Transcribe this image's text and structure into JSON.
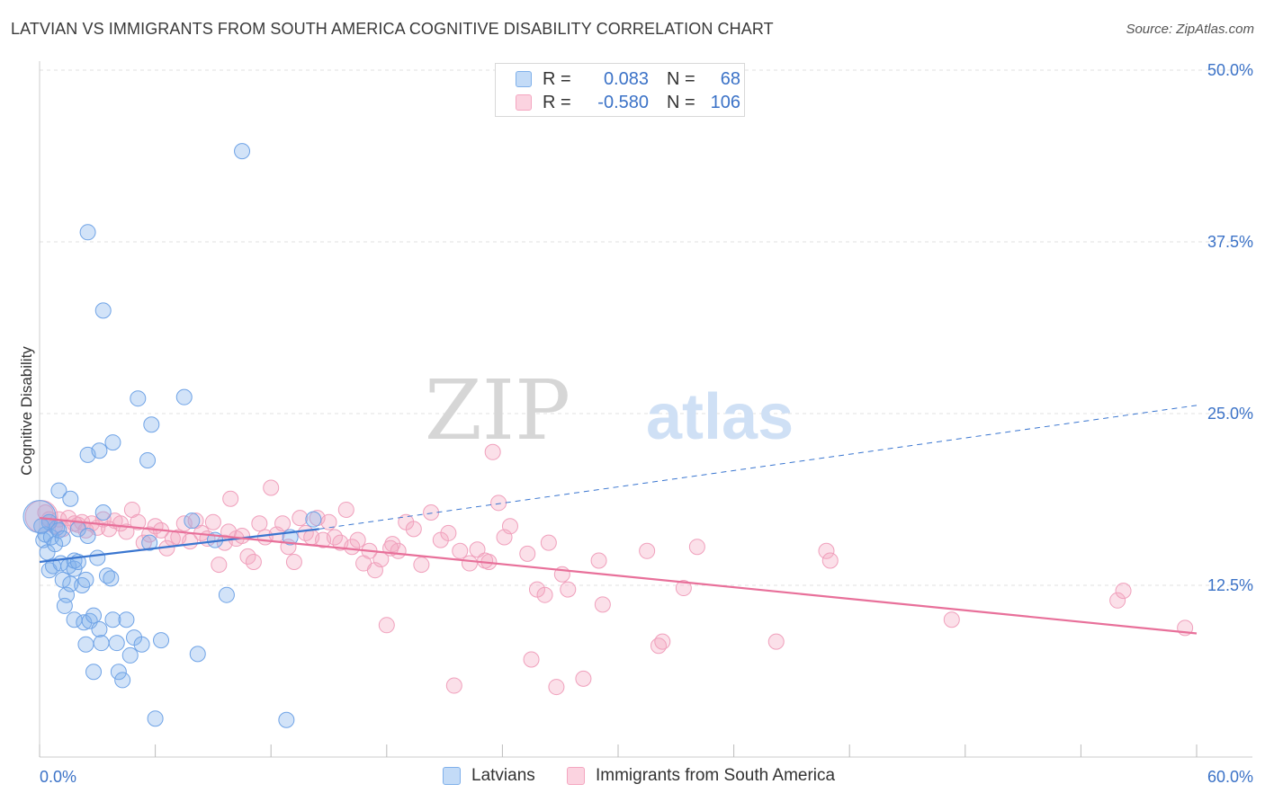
{
  "header": {
    "title": "LATVIAN VS IMMIGRANTS FROM SOUTH AMERICA COGNITIVE DISABILITY CORRELATION CHART",
    "source": "Source: ZipAtlas.com"
  },
  "watermark": {
    "zip": "ZIP",
    "atlas": "atlas"
  },
  "legend": {
    "rows": [
      {
        "r_label": "R =",
        "r_value": "0.083",
        "n_label": "N =",
        "n_value": "68",
        "color": "#7fb0ea"
      },
      {
        "r_label": "R =",
        "r_value": "-0.580",
        "n_label": "N =",
        "n_value": "106",
        "color": "#f4a6c0"
      }
    ]
  },
  "bottom_legend": {
    "items": [
      {
        "label": "Latvians",
        "color": "#7fb0ea"
      },
      {
        "label": "Immigrants from South America",
        "color": "#f4a6c0"
      }
    ]
  },
  "chart_data": {
    "type": "scatter",
    "title": "LATVIAN VS IMMIGRANTS FROM SOUTH AMERICA COGNITIVE DISABILITY CORRELATION CHART",
    "xlabel": "",
    "ylabel": "Cognitive Disability",
    "xlim": [
      0,
      60
    ],
    "ylim": [
      0,
      50
    ],
    "x_tick_labels": [
      "0.0%",
      "60.0%"
    ],
    "y_tick_labels": [
      "12.5%",
      "25.0%",
      "37.5%",
      "50.0%"
    ],
    "y_ticks": [
      12.5,
      25.0,
      37.5,
      50.0
    ],
    "grid": true,
    "colors": {
      "blue": "#6fa3e6",
      "pink": "#f0a0bc",
      "blue_line": "#3a76d0",
      "pink_line": "#e8709a",
      "axis_text": "#3b72c7"
    },
    "series": [
      {
        "name": "Latvians",
        "color": "#7fb0ea",
        "trend": {
          "x": [
            0,
            14.5
          ],
          "y": [
            14.2,
            16.6
          ],
          "dashed_to": [
            60,
            25.6
          ]
        },
        "points": [
          [
            0.1,
            16.8
          ],
          [
            0.2,
            15.8
          ],
          [
            0.3,
            16.2
          ],
          [
            0.4,
            14.9
          ],
          [
            0.5,
            17.1
          ],
          [
            0.5,
            13.6
          ],
          [
            0.6,
            16.0
          ],
          [
            0.7,
            13.9
          ],
          [
            0.8,
            15.5
          ],
          [
            0.9,
            16.7
          ],
          [
            1.0,
            16.5
          ],
          [
            1.0,
            19.4
          ],
          [
            1.1,
            14.1
          ],
          [
            1.2,
            15.9
          ],
          [
            1.2,
            12.9
          ],
          [
            1.3,
            11.0
          ],
          [
            1.4,
            11.8
          ],
          [
            1.5,
            13.9
          ],
          [
            1.6,
            12.6
          ],
          [
            1.6,
            18.8
          ],
          [
            1.8,
            13.7
          ],
          [
            1.8,
            10.0
          ],
          [
            1.8,
            14.3
          ],
          [
            2.0,
            14.2
          ],
          [
            2.0,
            16.6
          ],
          [
            2.2,
            12.5
          ],
          [
            2.3,
            9.8
          ],
          [
            2.4,
            12.9
          ],
          [
            2.4,
            8.2
          ],
          [
            2.5,
            16.1
          ],
          [
            2.5,
            38.2
          ],
          [
            2.5,
            22.0
          ],
          [
            2.6,
            9.9
          ],
          [
            2.8,
            10.3
          ],
          [
            2.8,
            6.2
          ],
          [
            3.0,
            14.5
          ],
          [
            3.1,
            9.3
          ],
          [
            3.1,
            22.3
          ],
          [
            3.2,
            8.3
          ],
          [
            3.3,
            17.8
          ],
          [
            3.3,
            32.5
          ],
          [
            3.5,
            13.2
          ],
          [
            3.7,
            13.0
          ],
          [
            3.8,
            10.0
          ],
          [
            3.8,
            22.9
          ],
          [
            4.0,
            8.3
          ],
          [
            4.1,
            6.2
          ],
          [
            4.3,
            5.6
          ],
          [
            4.5,
            10.0
          ],
          [
            4.7,
            7.4
          ],
          [
            4.9,
            8.7
          ],
          [
            5.1,
            26.1
          ],
          [
            5.3,
            8.2
          ],
          [
            5.6,
            21.6
          ],
          [
            5.7,
            15.6
          ],
          [
            5.8,
            24.2
          ],
          [
            6.0,
            2.8
          ],
          [
            6.3,
            8.5
          ],
          [
            7.5,
            26.2
          ],
          [
            7.9,
            17.2
          ],
          [
            8.2,
            7.5
          ],
          [
            9.1,
            15.8
          ],
          [
            9.7,
            11.8
          ],
          [
            10.5,
            44.1
          ],
          [
            12.8,
            2.7
          ],
          [
            13.0,
            16.0
          ],
          [
            14.2,
            17.3
          ],
          [
            0.0,
            17.5
          ]
        ]
      },
      {
        "name": "Immigrants from South America",
        "color": "#f4a6c0",
        "trend": {
          "x": [
            0,
            60
          ],
          "y": [
            17.4,
            9.0
          ]
        },
        "points": [
          [
            0.1,
            17.5
          ],
          [
            0.3,
            17.8
          ],
          [
            0.5,
            17.3
          ],
          [
            0.8,
            16.8
          ],
          [
            1.0,
            17.3
          ],
          [
            1.2,
            16.6
          ],
          [
            1.5,
            17.4
          ],
          [
            1.8,
            17.0
          ],
          [
            2.0,
            16.9
          ],
          [
            2.2,
            17.1
          ],
          [
            2.4,
            16.5
          ],
          [
            2.7,
            17.0
          ],
          [
            3.0,
            16.7
          ],
          [
            3.3,
            17.3
          ],
          [
            3.6,
            16.6
          ],
          [
            3.9,
            17.2
          ],
          [
            4.2,
            17.0
          ],
          [
            4.5,
            16.4
          ],
          [
            4.8,
            18.0
          ],
          [
            5.1,
            17.1
          ],
          [
            5.4,
            15.6
          ],
          [
            5.7,
            16.2
          ],
          [
            6.0,
            16.8
          ],
          [
            6.3,
            16.5
          ],
          [
            6.6,
            15.2
          ],
          [
            6.9,
            15.9
          ],
          [
            7.2,
            16.0
          ],
          [
            7.5,
            17.0
          ],
          [
            7.8,
            15.7
          ],
          [
            8.1,
            17.2
          ],
          [
            8.4,
            16.3
          ],
          [
            8.7,
            15.9
          ],
          [
            9.0,
            17.1
          ],
          [
            9.3,
            14.0
          ],
          [
            9.6,
            15.6
          ],
          [
            9.9,
            18.8
          ],
          [
            10.2,
            15.9
          ],
          [
            10.5,
            16.1
          ],
          [
            10.8,
            14.6
          ],
          [
            11.1,
            14.2
          ],
          [
            11.4,
            17.0
          ],
          [
            11.7,
            16.0
          ],
          [
            12.0,
            19.6
          ],
          [
            12.3,
            16.2
          ],
          [
            12.6,
            17.0
          ],
          [
            12.9,
            15.3
          ],
          [
            13.2,
            14.2
          ],
          [
            13.5,
            17.4
          ],
          [
            13.8,
            16.3
          ],
          [
            14.1,
            16.0
          ],
          [
            14.4,
            17.4
          ],
          [
            14.7,
            15.8
          ],
          [
            15.0,
            17.1
          ],
          [
            15.3,
            16.0
          ],
          [
            15.6,
            15.6
          ],
          [
            15.9,
            18.0
          ],
          [
            16.2,
            15.3
          ],
          [
            16.5,
            15.8
          ],
          [
            16.8,
            14.1
          ],
          [
            17.1,
            15.0
          ],
          [
            17.4,
            13.6
          ],
          [
            17.7,
            14.4
          ],
          [
            18.0,
            9.6
          ],
          [
            18.3,
            15.5
          ],
          [
            18.6,
            15.0
          ],
          [
            19.0,
            17.1
          ],
          [
            19.4,
            16.6
          ],
          [
            19.8,
            14.0
          ],
          [
            20.3,
            17.8
          ],
          [
            20.8,
            15.8
          ],
          [
            21.2,
            16.3
          ],
          [
            21.5,
            5.2
          ],
          [
            21.8,
            15.0
          ],
          [
            22.3,
            14.1
          ],
          [
            22.7,
            15.1
          ],
          [
            23.1,
            14.3
          ],
          [
            23.5,
            22.2
          ],
          [
            23.8,
            18.5
          ],
          [
            24.1,
            16.0
          ],
          [
            24.4,
            16.8
          ],
          [
            25.3,
            14.8
          ],
          [
            25.5,
            7.1
          ],
          [
            25.8,
            12.2
          ],
          [
            26.2,
            11.8
          ],
          [
            26.4,
            15.6
          ],
          [
            26.8,
            5.1
          ],
          [
            27.1,
            13.3
          ],
          [
            27.4,
            12.2
          ],
          [
            28.2,
            5.7
          ],
          [
            29.0,
            14.3
          ],
          [
            29.2,
            11.1
          ],
          [
            31.5,
            15.0
          ],
          [
            32.1,
            8.1
          ],
          [
            32.3,
            8.4
          ],
          [
            33.4,
            12.3
          ],
          [
            34.1,
            15.3
          ],
          [
            38.2,
            8.4
          ],
          [
            40.8,
            15.0
          ],
          [
            41.0,
            14.3
          ],
          [
            47.3,
            10.0
          ],
          [
            55.9,
            11.4
          ],
          [
            56.2,
            12.1
          ],
          [
            59.4,
            9.4
          ],
          [
            9.8,
            16.4
          ],
          [
            18.2,
            15.2
          ],
          [
            23.3,
            14.2
          ]
        ]
      }
    ]
  }
}
